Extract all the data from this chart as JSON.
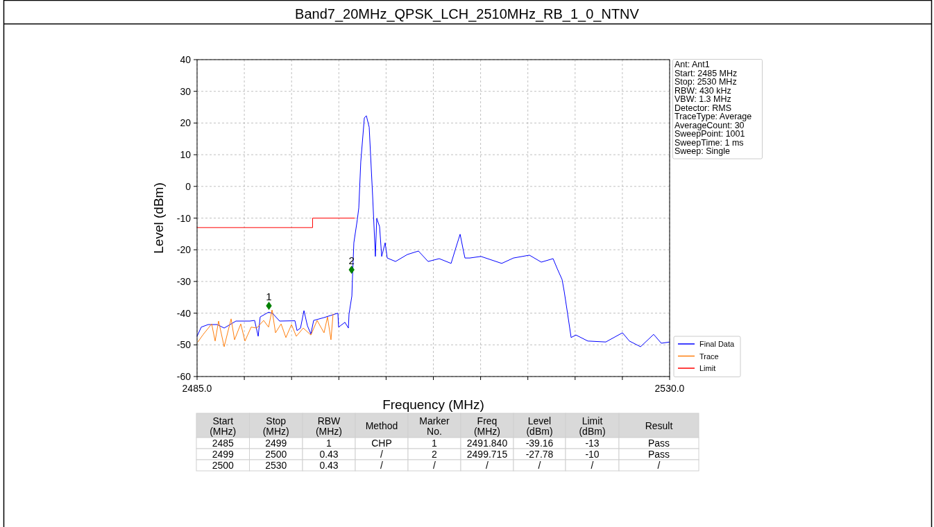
{
  "chart_data": {
    "type": "line",
    "title": "Band7_20MHz_QPSK_LCH_2510MHz_RB_1_0_NTNV",
    "xlabel": "Frequency (MHz)",
    "ylabel": "Level (dBm)",
    "xlim": [
      2485,
      2530
    ],
    "xticks": [
      {
        "value": 2485,
        "label": "2485.0"
      },
      {
        "value": 2489.5,
        "label": null
      },
      {
        "value": 2494,
        "label": null
      },
      {
        "value": 2498.5,
        "label": null
      },
      {
        "value": 2503,
        "label": null
      },
      {
        "value": 2507.5,
        "label": null
      },
      {
        "value": 2512,
        "label": null
      },
      {
        "value": 2516.5,
        "label": null
      },
      {
        "value": 2521,
        "label": null
      },
      {
        "value": 2525.5,
        "label": null
      },
      {
        "value": 2530,
        "label": "2530.0"
      }
    ],
    "ylim": [
      -60,
      40
    ],
    "yticks": [
      -60,
      -50,
      -40,
      -30,
      -20,
      -10,
      0,
      10,
      20,
      30,
      40
    ],
    "grid": true,
    "legend": "right",
    "series": [
      {
        "name": "Final Data",
        "color": "#0000ff",
        "x": [
          2485.0,
          2485.4,
          2486.06,
          2486.92,
          2487.58,
          2488.7,
          2490.02,
          2490.48,
          2490.82,
          2491.01,
          2491.81,
          2492.2,
          2492.86,
          2494.32,
          2494.52,
          2494.85,
          2495.18,
          2495.51,
          2495.84,
          2496.1,
          2497.09,
          2498.41,
          2498.48,
          2499.08,
          2499.41,
          2499.47,
          2499.74,
          2499.8,
          2499.93,
          2500.26,
          2500.4,
          2500.59,
          2500.93,
          2501.12,
          2501.39,
          2501.72,
          2501.98,
          2502.11,
          2502.38,
          2502.58,
          2502.91,
          2503.11,
          2503.9,
          2505.02,
          2506.08,
          2507.0,
          2508.06,
          2509.19,
          2509.65,
          2510.05,
          2510.38,
          2510.51,
          2510.97,
          2512.03,
          2514.01,
          2515.13,
          2516.65,
          2517.78,
          2518.9,
          2519.29,
          2519.76,
          2519.96,
          2520.29,
          2520.62,
          2521.08,
          2522.21,
          2523.92,
          2525.51,
          2526.17,
          2527.23,
          2528.48,
          2529.21,
          2530.0
        ],
        "values": [
          -47.3,
          -44.4,
          -43.6,
          -43.6,
          -44.7,
          -42.5,
          -42.5,
          -42.3,
          -47.3,
          -41.2,
          -39.7,
          -40.1,
          -42.5,
          -42.4,
          -45.5,
          -44.7,
          -39.2,
          -44.0,
          -46.6,
          -42.3,
          -41.4,
          -40.0,
          -44.4,
          -42.9,
          -44.7,
          -40.3,
          -34.6,
          -28.7,
          -17.8,
          -10.5,
          -6.8,
          7.8,
          21.6,
          22.3,
          18.7,
          -3.1,
          -22.1,
          -10.1,
          -12.7,
          -22.1,
          -17.8,
          -22.6,
          -23.7,
          -21.5,
          -20.4,
          -23.7,
          -22.8,
          -24.3,
          -19.3,
          -15.1,
          -20.6,
          -22.6,
          -22.6,
          -22.1,
          -24.3,
          -22.6,
          -21.7,
          -23.9,
          -22.8,
          -25.9,
          -29.4,
          -33.1,
          -40.3,
          -47.7,
          -46.9,
          -48.8,
          -49.1,
          -46.2,
          -48.8,
          -50.6,
          -46.7,
          -49.5,
          -49.1
        ]
      },
      {
        "name": "Trace",
        "color": "#ff7f0e",
        "x": [
          2485.07,
          2485.59,
          2486.39,
          2486.72,
          2487.05,
          2487.58,
          2488.24,
          2488.57,
          2489.16,
          2489.56,
          2490.15,
          2490.68,
          2491.34,
          2491.81,
          2492.14,
          2492.47,
          2493.0,
          2493.46,
          2493.99,
          2494.45,
          2495.11,
          2495.84,
          2496.43,
          2497.09,
          2497.42,
          2497.75,
          2497.95
        ],
        "values": [
          -49.1,
          -46.7,
          -43.4,
          -48.8,
          -42.5,
          -50.6,
          -41.8,
          -48.4,
          -43.4,
          -48.8,
          -44.4,
          -44.7,
          -42.3,
          -44.4,
          -39.0,
          -46.2,
          -43.4,
          -47.7,
          -43.6,
          -47.3,
          -44.7,
          -46.9,
          -42.3,
          -46.2,
          -41.2,
          -48.4,
          -40.3
        ]
      },
      {
        "name": "Limit",
        "color": "#ff0000",
        "x": [
          2485,
          2496,
          2496,
          2500
        ],
        "values": [
          -13,
          -13,
          -10,
          -10
        ]
      },
      {
        "type": "scatter",
        "color": "#008000",
        "marker": "diamond",
        "x": [
          2491.84,
          2499.715
        ],
        "values": [
          -37.7,
          -26.3
        ]
      }
    ],
    "annotations": [
      "Ant: Ant1",
      "Start: 2485 MHz",
      "Stop: 2530 MHz",
      "RBW: 430 kHz",
      "VBW: 1.3 MHz",
      "Detector: RMS",
      "TraceType: Average",
      "AverageCount: 30",
      "SweepPoint: 1001",
      "SweepTime: 1 ms",
      "Sweep: Single",
      "Start\n(MHz)",
      "Stop\n(MHz)",
      "RBW\n(MHz)",
      "Method",
      "Marker\nNo.",
      "Freq\n(MHz)",
      "Level\n(dBm)",
      "Limit\n(dBm)",
      "Result",
      "2485",
      "2499",
      "1",
      "CHP",
      "1",
      "2491.840",
      "-39.16",
      "-13",
      "Pass",
      "2499",
      "2500",
      "0.43",
      "/",
      "2",
      "2499.715",
      "-27.78",
      "-10",
      "Pass",
      "2500",
      "2530",
      "0.43",
      "/",
      "/",
      "/",
      "/",
      "/",
      "/",
      {
        "text": "1",
        "x": 2491.84,
        "y": -37.7
      },
      {
        "text": "2",
        "x": 2499.715,
        "y": -26.3
      }
    ]
  }
}
